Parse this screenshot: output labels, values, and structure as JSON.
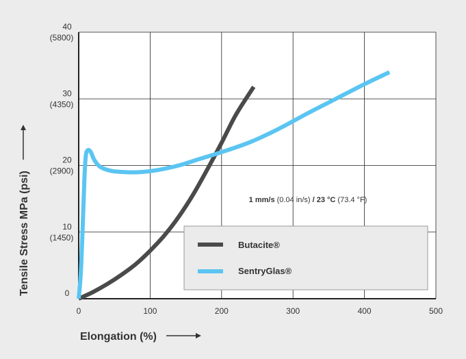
{
  "chart_data": {
    "type": "line",
    "title": "",
    "xlabel": "Elongation (%)",
    "ylabel": "Tensile Stress MPa (psi)",
    "xlim": [
      0,
      500
    ],
    "ylim": [
      0,
      40
    ],
    "grid": true,
    "legend_position": "bottom-right",
    "x_ticks": [
      {
        "value": 0,
        "label": "0"
      },
      {
        "value": 100,
        "label": "100"
      },
      {
        "value": 200,
        "label": "200"
      },
      {
        "value": 300,
        "label": "300"
      },
      {
        "value": 400,
        "label": "400"
      },
      {
        "value": 500,
        "label": "500"
      }
    ],
    "y_ticks": [
      {
        "value": 0,
        "label": "0",
        "sublabel": ""
      },
      {
        "value": 10,
        "label": "10",
        "sublabel": "(1450)"
      },
      {
        "value": 20,
        "label": "20",
        "sublabel": "(2900)"
      },
      {
        "value": 30,
        "label": "30",
        "sublabel": "(4350)"
      },
      {
        "value": 40,
        "label": "40",
        "sublabel": "(5800)"
      }
    ],
    "annotation": {
      "part1_bold": "1 mm/s",
      "part2": " (0.04 in/s) ",
      "part3_bold": "/ 23 °C",
      "part4": " (73.4 °F)"
    },
    "series": [
      {
        "name": "Butacite®",
        "color": "#4a4a4a",
        "points": [
          [
            0,
            0
          ],
          [
            20,
            1
          ],
          [
            40,
            2.2
          ],
          [
            60,
            3.6
          ],
          [
            80,
            5.2
          ],
          [
            100,
            7.2
          ],
          [
            120,
            9.5
          ],
          [
            140,
            12.3
          ],
          [
            160,
            15.6
          ],
          [
            180,
            19.4
          ],
          [
            200,
            23.4
          ],
          [
            220,
            27.6
          ],
          [
            245,
            31.8
          ]
        ]
      },
      {
        "name": "SentryGlas®",
        "color": "#5bc5f2",
        "points": [
          [
            0,
            0
          ],
          [
            3,
            4
          ],
          [
            6,
            12
          ],
          [
            8,
            18
          ],
          [
            10,
            21.5
          ],
          [
            13,
            22.3
          ],
          [
            17,
            22
          ],
          [
            22,
            20.8
          ],
          [
            30,
            19.8
          ],
          [
            45,
            19.2
          ],
          [
            65,
            19
          ],
          [
            85,
            19
          ],
          [
            110,
            19.3
          ],
          [
            140,
            20
          ],
          [
            170,
            21
          ],
          [
            200,
            22
          ],
          [
            240,
            23.5
          ],
          [
            280,
            25.5
          ],
          [
            320,
            27.8
          ],
          [
            360,
            30
          ],
          [
            400,
            32.2
          ],
          [
            435,
            34
          ]
        ]
      }
    ]
  }
}
